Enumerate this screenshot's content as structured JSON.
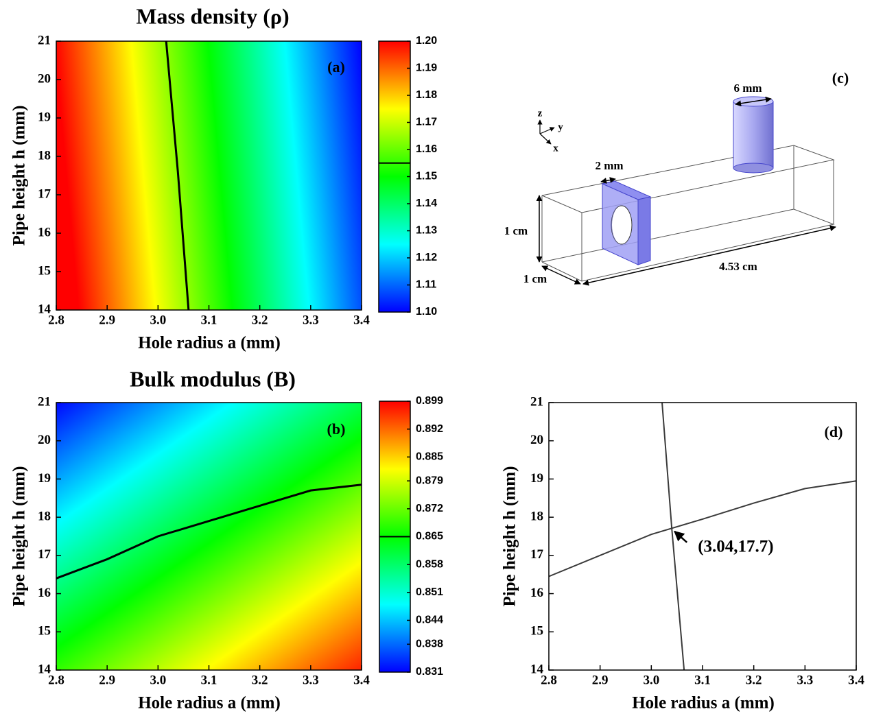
{
  "chart_data": [
    {
      "type": "contour",
      "title": "Mass density (ρ)",
      "panel_label": "(a)",
      "x_label": "Hole radius a (mm)",
      "y_label": "Pipe height h (mm)",
      "xlim": [
        2.8,
        3.4
      ],
      "xticks": [
        2.8,
        2.9,
        {
          "value": 3,
          "label": "3.0"
        },
        3.1,
        3.2,
        3.3,
        3.4
      ],
      "ylim": [
        14,
        21
      ],
      "yticks": [
        14,
        15,
        16,
        17,
        18,
        19,
        20,
        21
      ],
      "colormap": [
        "#0000ff",
        "#00ffff",
        "#00ff00",
        "#ffff00",
        "#ff0000"
      ],
      "colorbar_lim": [
        1.1,
        1.2
      ],
      "colorbar_ticks": [
        {
          "value": 1.1,
          "label": "1.10"
        },
        1.11,
        1.12,
        1.13,
        1.14,
        1.15,
        1.16,
        1.17,
        1.18,
        1.19,
        {
          "value": 1.2,
          "label": "1.20"
        }
      ],
      "contour_level": 1.155,
      "series": [
        {
          "color": "#000000",
          "x": [
            3.016,
            3.039,
            3.06
          ],
          "values": [
            21,
            17.6,
            14
          ]
        }
      ]
    },
    {
      "type": "contour",
      "title": "Bulk modulus (B)",
      "panel_label": "(b)",
      "x_label": "Hole radius a (mm)",
      "y_label": "Pipe height h (mm)",
      "xlim": [
        2.8,
        3.4
      ],
      "xticks": [
        2.8,
        2.9,
        {
          "value": 3,
          "label": "3.0"
        },
        3.1,
        3.2,
        3.3,
        3.4
      ],
      "ylim": [
        14,
        21
      ],
      "yticks": [
        14,
        15,
        16,
        17,
        18,
        19,
        20,
        21
      ],
      "colormap": [
        "#0000ff",
        "#00ffff",
        "#00ff00",
        "#ffff00",
        "#ff0000"
      ],
      "colorbar_lim": [
        0.831,
        0.899
      ],
      "colorbar_ticks": [
        0.831,
        0.838,
        0.844,
        0.851,
        0.858,
        0.865,
        0.872,
        0.879,
        0.885,
        0.892,
        0.899
      ],
      "contour_level": 0.865,
      "series": [
        {
          "color": "#000000",
          "x": [
            2.8,
            2.9,
            3.0,
            3.1,
            3.2,
            3.3,
            3.4
          ],
          "values": [
            16.4,
            16.9,
            17.5,
            17.9,
            18.3,
            18.7,
            18.85
          ]
        }
      ]
    },
    {
      "type": "line",
      "panel_label": "(d)",
      "x_label": "Hole radius a (mm)",
      "y_label": "Pipe height h (mm)",
      "xlim": [
        2.8,
        3.4
      ],
      "xticks": [
        2.8,
        2.9,
        {
          "value": 3,
          "label": "3.0"
        },
        3.1,
        3.2,
        3.3,
        3.4
      ],
      "ylim": [
        14,
        21
      ],
      "yticks": [
        14,
        15,
        16,
        17,
        18,
        19,
        20,
        21
      ],
      "series": [
        {
          "color": "#3a3a3a",
          "x": [
            3.021,
            3.04,
            3.064
          ],
          "values": [
            21,
            17.7,
            14
          ]
        },
        {
          "color": "#3a3a3a",
          "x": [
            2.8,
            2.9,
            3.0,
            3.1,
            3.2,
            3.3,
            3.4
          ],
          "values": [
            16.45,
            17.0,
            17.55,
            17.95,
            18.37,
            18.75,
            18.95
          ]
        }
      ],
      "annotations": [
        {
          "text": "(3.04,17.7)",
          "x": 3.04,
          "y": 17.7
        }
      ]
    }
  ],
  "diagram": {
    "panel_label": "(c)",
    "axes": [
      "z",
      "y",
      "x"
    ],
    "dims": [
      "6 mm",
      "2 mm",
      "1 cm",
      "1 cm",
      "4.53 cm"
    ]
  }
}
